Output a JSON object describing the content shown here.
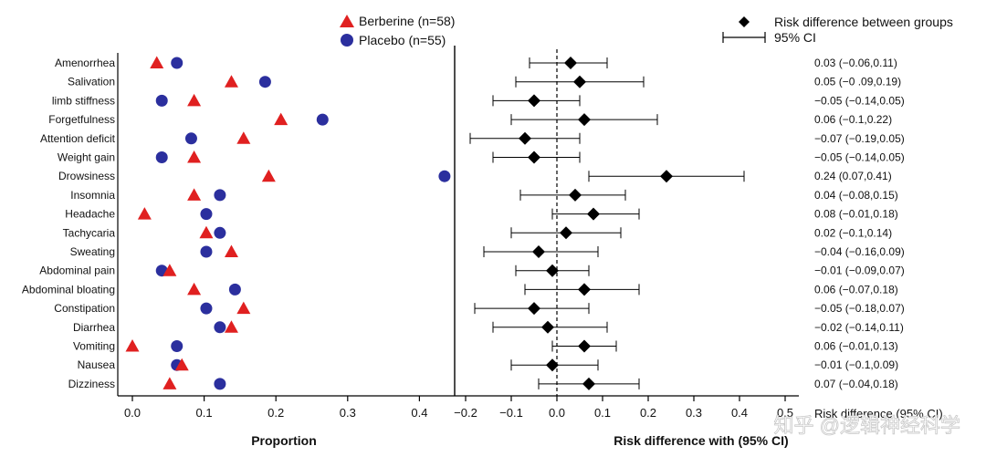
{
  "chart_data": [
    {
      "type": "scatter",
      "xlabel": "Proportion",
      "xlim": [
        -0.02,
        0.45
      ],
      "xticks": [
        0.0,
        0.1,
        0.2,
        0.3,
        0.4
      ],
      "xtick_labels": [
        "0.0",
        "0.1",
        "0.2",
        "0.3",
        "0.4"
      ],
      "categories": [
        "Amenorrhea",
        "Salivation",
        "limb stiffness",
        "Forgetfulness",
        "Attention deficit",
        "Weight gain",
        "Drowsiness",
        "Insomnia",
        "Headache",
        "Tachycaria",
        "Sweating",
        "Abdominal pain",
        "Abdominal bloating",
        "Constipation",
        "Diarrhea",
        "Vomiting",
        "Nausea",
        "Dizziness"
      ],
      "series": [
        {
          "name": "Berberine (n=58)",
          "marker": "triangle",
          "color": "#e02020",
          "values": [
            0.034,
            0.138,
            0.086,
            0.207,
            0.155,
            0.086,
            0.19,
            0.086,
            0.017,
            0.103,
            0.138,
            0.052,
            0.086,
            0.155,
            0.138,
            0.0,
            0.069,
            0.052
          ]
        },
        {
          "name": "Placebo (n=55)",
          "marker": "circle",
          "color": "#2b2f9e",
          "values": [
            0.062,
            0.185,
            0.041,
            0.265,
            0.082,
            0.041,
            0.435,
            0.122,
            0.103,
            0.122,
            0.103,
            0.041,
            0.143,
            0.103,
            0.122,
            0.062,
            0.062,
            0.122
          ]
        }
      ],
      "legend_position": "top"
    },
    {
      "type": "forest",
      "xlabel": "Risk difference with (95% CI)",
      "xlim": [
        -0.22,
        0.52
      ],
      "xticks": [
        -0.2,
        -0.1,
        0.0,
        0.1,
        0.2,
        0.3,
        0.4,
        0.5
      ],
      "xtick_labels": [
        "−0.2",
        "−0.1",
        "0.0",
        "0.1",
        "0.2",
        "0.3",
        "0.4",
        "0.5"
      ],
      "reference_line": 0.0,
      "points": [
        {
          "est": 0.03,
          "lo": -0.06,
          "hi": 0.11,
          "label": "0.03 (−0.06,0.11)"
        },
        {
          "est": 0.05,
          "lo": -0.09,
          "hi": 0.19,
          "label": "0.05 (−0 .09,0.19)"
        },
        {
          "est": -0.05,
          "lo": -0.14,
          "hi": 0.05,
          "label": "−0.05 (−0.14,0.05)"
        },
        {
          "est": 0.06,
          "lo": -0.1,
          "hi": 0.22,
          "label": "0.06 (−0.1,0.22)"
        },
        {
          "est": -0.07,
          "lo": -0.19,
          "hi": 0.05,
          "label": "−0.07 (−0.19,0.05)"
        },
        {
          "est": -0.05,
          "lo": -0.14,
          "hi": 0.05,
          "label": "−0.05 (−0.14,0.05)"
        },
        {
          "est": 0.24,
          "lo": 0.07,
          "hi": 0.41,
          "label": "0.24 (0.07,0.41)"
        },
        {
          "est": 0.04,
          "lo": -0.08,
          "hi": 0.15,
          "label": "0.04 (−0.08,0.15)"
        },
        {
          "est": 0.08,
          "lo": -0.01,
          "hi": 0.18,
          "label": "0.08 (−0.01,0.18)"
        },
        {
          "est": 0.02,
          "lo": -0.1,
          "hi": 0.14,
          "label": "0.02 (−0.1,0.14)"
        },
        {
          "est": -0.04,
          "lo": -0.16,
          "hi": 0.09,
          "label": "−0.04 (−0.16,0.09)"
        },
        {
          "est": -0.01,
          "lo": -0.09,
          "hi": 0.07,
          "label": "−0.01 (−0.09,0.07)"
        },
        {
          "est": 0.06,
          "lo": -0.07,
          "hi": 0.18,
          "label": "0.06 (−0.07,0.18)"
        },
        {
          "est": -0.05,
          "lo": -0.18,
          "hi": 0.07,
          "label": "−0.05 (−0.18,0.07)"
        },
        {
          "est": -0.02,
          "lo": -0.14,
          "hi": 0.11,
          "label": "−0.02 (−0.14,0.11)"
        },
        {
          "est": 0.06,
          "lo": -0.01,
          "hi": 0.13,
          "label": "0.06 (−0.01,0.13)"
        },
        {
          "est": -0.01,
          "lo": -0.1,
          "hi": 0.09,
          "label": "−0.01 (−0.1,0.09)"
        },
        {
          "est": 0.07,
          "lo": -0.04,
          "hi": 0.18,
          "label": "0.07 (−0.04,0.18)"
        }
      ],
      "legend": {
        "point_label": "Risk difference between groups",
        "ci_label": "95% CI"
      },
      "ci_column_header": "Risk difference (95% CI)"
    }
  ],
  "watermark": "知乎 @逻辑神经科学",
  "colors": {
    "berberine": "#e02020",
    "placebo": "#2b2f9e",
    "forest": "#000000"
  }
}
